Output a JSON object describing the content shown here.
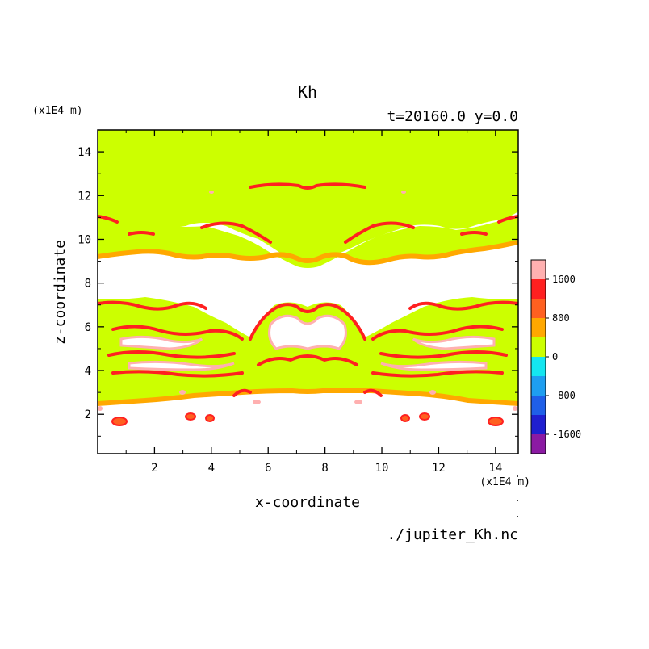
{
  "chart_data": {
    "type": "heatmap",
    "title": "Kh",
    "subtitle": "t=20160.0 y=0.0",
    "xlabel": "x-coordinate",
    "ylabel": "z-coordinate",
    "x_unit": "(x1E4 m)",
    "y_unit": "(x1E4 m)",
    "filename": "./jupiter_Kh.nc",
    "xlim": [
      0.0,
      14.8
    ],
    "ylim": [
      0.2,
      15.0
    ],
    "xticks": [
      "2",
      "4",
      "6",
      "8",
      "10",
      "12",
      "14"
    ],
    "yticks": [
      "2",
      "4",
      "6",
      "8",
      "10",
      "12",
      "14"
    ],
    "colorbar": {
      "levels": [
        -2000,
        -1600,
        -1200,
        -800,
        -400,
        0,
        400,
        800,
        1200,
        1600,
        2000
      ],
      "colors": [
        "#8b1aa3",
        "#1f1fd0",
        "#1f5fe8",
        "#1e9ef0",
        "#14e6f0",
        "#ccff00",
        "#ffa800",
        "#ff6020",
        "#ff2020",
        "#ffb0b0"
      ],
      "tick_labels": [
        "-1600",
        "-800",
        "0",
        "800",
        "1600"
      ]
    },
    "background_value_description": "",
    "bands": [
      {
        "z": [
          11.8,
          15.0
        ],
        "kind": "low"
      },
      {
        "z": [
          9.3,
          11.0
        ],
        "kind": "low"
      },
      {
        "z": [
          2.3,
          7.2
        ],
        "kind": "low"
      }
    ]
  }
}
